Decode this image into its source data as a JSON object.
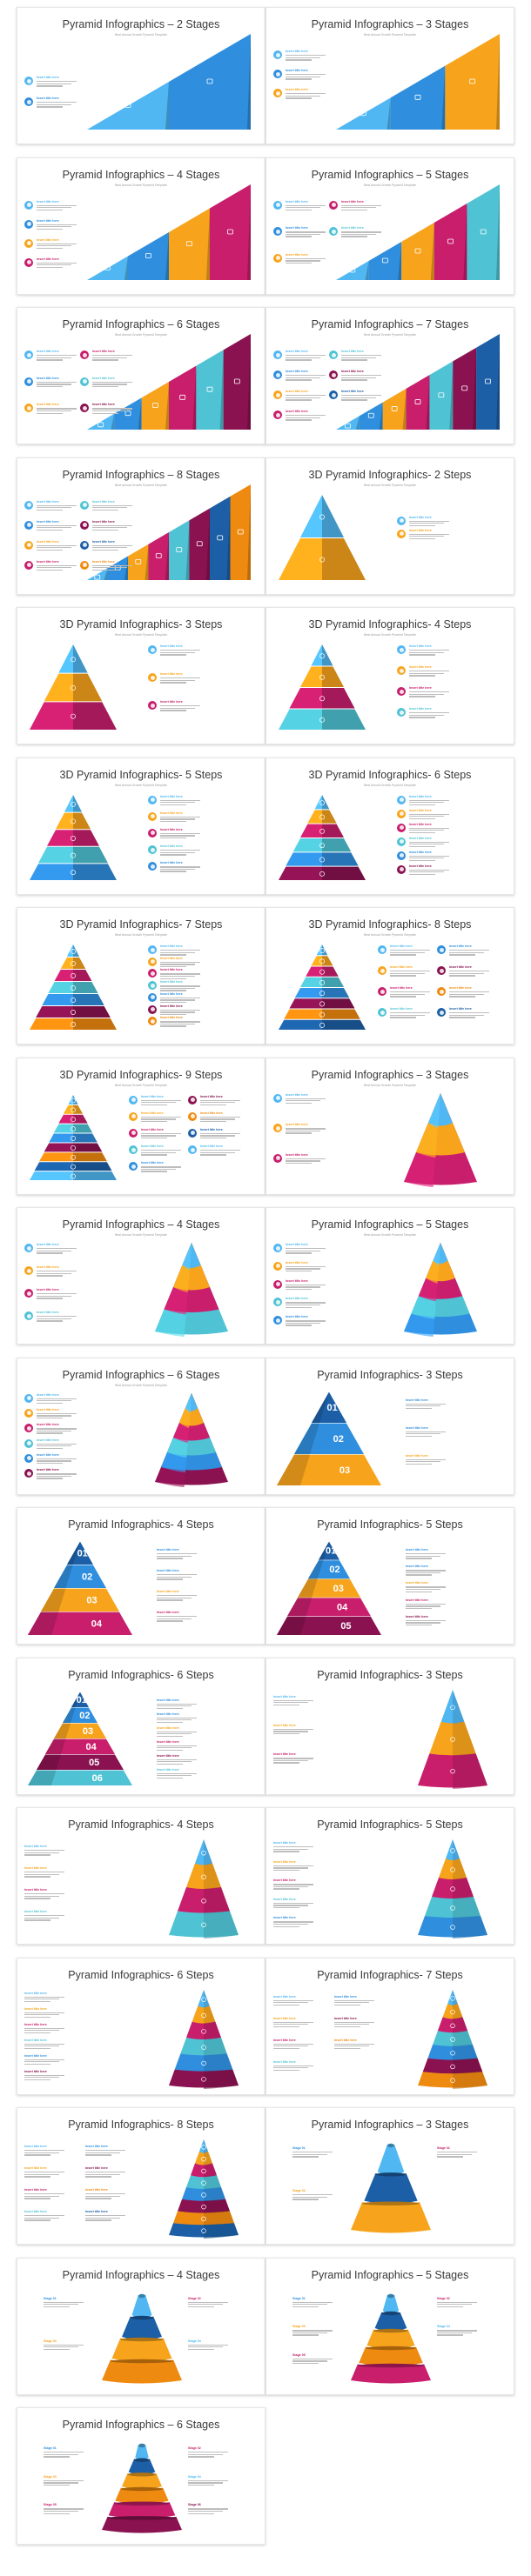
{
  "palette": {
    "blue": "#2f8fde",
    "sky": "#50b7f2",
    "orange": "#f7a41c",
    "magenta": "#c81e6c",
    "teal": "#4fc3d4",
    "wine": "#8a1250",
    "navy": "#1c5fa6",
    "amber": "#ef8a10"
  },
  "slides": [
    {
      "title": "Pyramid Infographics – 2 Stages",
      "subtitle": "Best Annual Growth Pyramid Template",
      "style": "slope",
      "n": 2,
      "labels": [
        "Insert title here",
        "Insert title here"
      ]
    },
    {
      "title": "Pyramid Infographics – 3 Stages",
      "subtitle": "Best Annual Growth Pyramid Template",
      "style": "slope",
      "n": 3,
      "labels": [
        "Insert title here",
        "Insert title here",
        "Insert title here"
      ]
    },
    {
      "title": "Pyramid Infographics – 4 Stages",
      "subtitle": "Best Annual Growth Pyramid Template",
      "style": "slope",
      "n": 4,
      "labels": [
        "Insert title here",
        "Insert title here",
        "Insert title here",
        "Insert title here"
      ]
    },
    {
      "title": "Pyramid Infographics – 5 Stages",
      "subtitle": "Best Annual Growth Pyramid Template",
      "style": "slope",
      "n": 5,
      "labels": [
        "Insert title here",
        "Insert title here",
        "Insert title here",
        "Insert title here",
        "Insert title here"
      ]
    },
    {
      "title": "Pyramid Infographics – 6 Stages",
      "subtitle": "Best Annual Growth Pyramid Template",
      "style": "slope",
      "n": 6,
      "labels": [
        "Insert title here",
        "Insert title here",
        "Insert title here",
        "Insert title here",
        "Insert title here",
        "Insert title here"
      ]
    },
    {
      "title": "Pyramid Infographics – 7 Stages",
      "subtitle": "Best Annual Growth Pyramid Template",
      "style": "slope",
      "n": 7,
      "labels": [
        "Insert title here",
        "Insert title here",
        "Insert title here",
        "Insert title here",
        "Insert title here",
        "Insert title here",
        "Insert title here"
      ]
    },
    {
      "title": "Pyramid Infographics – 8 Stages",
      "subtitle": "Best Annual Growth Pyramid Template",
      "style": "slope",
      "n": 8,
      "labels": [
        "Insert title here",
        "Insert title here",
        "Insert title here",
        "Insert title here",
        "Insert title here",
        "Insert title here",
        "Insert title here",
        "Insert title here"
      ]
    },
    {
      "title": "3D Pyramid Infographics- 2 Steps",
      "subtitle": "Best Annual Growth Pyramid Template",
      "style": "tri3d",
      "n": 2,
      "labels": [
        "Insert title here",
        "Insert title here"
      ]
    },
    {
      "title": "3D Pyramid Infographics- 3 Steps",
      "subtitle": "Best Annual Growth Pyramid Template",
      "style": "tri3d",
      "n": 3,
      "labels": [
        "Insert title here",
        "Insert title here",
        "Insert title here"
      ]
    },
    {
      "title": "3D Pyramid Infographics- 4 Steps",
      "subtitle": "Best Annual Growth Pyramid Template",
      "style": "tri3d",
      "n": 4,
      "labels": [
        "Insert title here",
        "Insert title here",
        "Insert title here",
        "Insert title here"
      ]
    },
    {
      "title": "3D Pyramid Infographics- 5 Steps",
      "subtitle": "Best Annual Growth Pyramid Template",
      "style": "tri3d",
      "n": 5,
      "labels": [
        "Insert title here",
        "Insert title here",
        "Insert title here",
        "Insert title here",
        "Insert title here"
      ]
    },
    {
      "title": "3D Pyramid Infographics- 6 Steps",
      "subtitle": "Best Annual Growth Pyramid Template",
      "style": "tri3d",
      "n": 6,
      "labels": [
        "Insert title here",
        "Insert title here",
        "Insert title here",
        "Insert title here",
        "Insert title here",
        "Insert title here"
      ]
    },
    {
      "title": "3D Pyramid Infographics- 7 Steps",
      "subtitle": "Best Annual Growth Pyramid Template",
      "style": "tri3d",
      "n": 7,
      "labels": [
        "Insert title here",
        "Insert title here",
        "Insert title here",
        "Insert title here",
        "Insert title here",
        "Insert title here",
        "Insert title here"
      ]
    },
    {
      "title": "3D Pyramid Infographics- 8 Steps",
      "subtitle": "Best Annual Growth Pyramid Template",
      "style": "tri3d",
      "n": 8,
      "labels": [
        "Insert title here",
        "Insert title here",
        "Insert title here",
        "Insert title here",
        "Insert title here",
        "Insert title here",
        "Insert title here",
        "Insert title here"
      ]
    },
    {
      "title": "3D Pyramid Infographics- 9 Steps",
      "subtitle": "Best Annual Growth Pyramid Template",
      "style": "tri3d",
      "n": 9,
      "labels": [
        "Insert title here",
        "Insert title here",
        "Insert title here",
        "Insert title here",
        "Insert title here",
        "Insert title here",
        "Insert title here",
        "Insert title here",
        "Insert title here"
      ]
    },
    {
      "title": "Pyramid Infographics – 3 Stages",
      "subtitle": "Best Annual Growth Pyramid Template",
      "style": "cone",
      "n": 3,
      "labels": [
        "Insert title here",
        "Insert title here",
        "Insert title here"
      ]
    },
    {
      "title": "Pyramid Infographics – 4 Stages",
      "subtitle": "Best Annual Growth Pyramid Template",
      "style": "cone",
      "n": 4,
      "labels": [
        "Insert title here",
        "Insert title here",
        "Insert title here",
        "Insert title here"
      ]
    },
    {
      "title": "Pyramid Infographics – 5 Stages",
      "subtitle": "Best Annual Growth Pyramid Template",
      "style": "cone",
      "n": 5,
      "labels": [
        "Insert title here",
        "Insert title here",
        "Insert title here",
        "Insert title here",
        "Insert title here"
      ]
    },
    {
      "title": "Pyramid Infographics – 6 Stages",
      "subtitle": "Best Annual Growth Pyramid Template",
      "style": "cone",
      "n": 6,
      "labels": [
        "Insert title here",
        "Insert title here",
        "Insert title here",
        "Insert title here",
        "Insert title here",
        "Insert title here"
      ]
    },
    {
      "title": "Pyramid Infographics- 3 Steps",
      "subtitle": "",
      "style": "numbered",
      "n": 3,
      "numbers": [
        "01",
        "02",
        "03"
      ],
      "labels": [
        "Insert title here",
        "Insert title here",
        "Insert title here"
      ]
    },
    {
      "title": "Pyramid Infographics- 4 Steps",
      "subtitle": "",
      "style": "numbered",
      "n": 4,
      "numbers": [
        "01",
        "02",
        "03",
        "04"
      ],
      "labels": [
        "Insert title here",
        "Insert title here",
        "Insert title here",
        "Insert title here"
      ]
    },
    {
      "title": "Pyramid Infographics- 5 Steps",
      "subtitle": "",
      "style": "numbered",
      "n": 5,
      "numbers": [
        "01",
        "02",
        "03",
        "04",
        "05"
      ],
      "labels": [
        "Insert title here",
        "Insert title here",
        "Insert title here",
        "Insert title here",
        "Insert title here"
      ]
    },
    {
      "title": "Pyramid Infographics- 6 Steps",
      "subtitle": "",
      "style": "numbered",
      "n": 6,
      "numbers": [
        "01",
        "02",
        "03",
        "04",
        "05",
        "06"
      ],
      "labels": [
        "Insert title here",
        "Insert title here",
        "Insert title here",
        "Insert title here",
        "Insert title here",
        "Insert title here"
      ]
    },
    {
      "title": "Pyramid Infographics- 3 Steps",
      "subtitle": "",
      "style": "layered",
      "n": 3,
      "labels": [
        "Insert title here",
        "Insert title here",
        "Insert title here"
      ]
    },
    {
      "title": "Pyramid Infographics- 4 Steps",
      "subtitle": "",
      "style": "layered",
      "n": 4,
      "labels": [
        "Insert title here",
        "Insert title here",
        "Insert title here",
        "Insert title here"
      ]
    },
    {
      "title": "Pyramid Infographics- 5 Steps",
      "subtitle": "",
      "style": "layered",
      "n": 5,
      "labels": [
        "Insert title here",
        "Insert title here",
        "Insert title here",
        "Insert title here",
        "Insert title here"
      ]
    },
    {
      "title": "Pyramid Infographics- 6 Steps",
      "subtitle": "",
      "style": "layered",
      "n": 6,
      "labels": [
        "Insert title here",
        "Insert title here",
        "Insert title here",
        "Insert title here",
        "Insert title here",
        "Insert title here"
      ]
    },
    {
      "title": "Pyramid Infographics- 7 Steps",
      "subtitle": "",
      "style": "layered",
      "n": 7,
      "labels": [
        "Insert title here",
        "Insert title here",
        "Insert title here",
        "Insert title here",
        "Insert title here",
        "Insert title here",
        "Insert title here"
      ]
    },
    {
      "title": "Pyramid Infographics- 8 Steps",
      "subtitle": "",
      "style": "layered",
      "n": 8,
      "labels": [
        "Insert title here",
        "Insert title here",
        "Insert title here",
        "Insert title here",
        "Insert title here",
        "Insert title here",
        "Insert title here",
        "Insert title here"
      ]
    },
    {
      "title": "Pyramid Infographics – 3 Stages",
      "subtitle": "",
      "style": "stacked",
      "n": 3,
      "labels": [
        "Stage 01",
        "Stage 02",
        "Stage 03"
      ]
    },
    {
      "title": "Pyramid Infographics – 4 Stages",
      "subtitle": "",
      "style": "stacked",
      "n": 4,
      "labels": [
        "Stage 01",
        "Stage 02",
        "Stage 03",
        "Stage 04"
      ]
    },
    {
      "title": "Pyramid Infographics – 5 Stages",
      "subtitle": "",
      "style": "stacked",
      "n": 5,
      "labels": [
        "Stage 01",
        "Stage 02",
        "Stage 03",
        "Stage 04",
        "Stage 05"
      ]
    },
    {
      "title": "Pyramid Infographics – 6 Stages",
      "subtitle": "",
      "style": "stacked",
      "n": 6,
      "labels": [
        "Stage 01",
        "Stage 02",
        "Stage 03",
        "Stage 04",
        "Stage 05",
        "Stage 06"
      ]
    }
  ]
}
